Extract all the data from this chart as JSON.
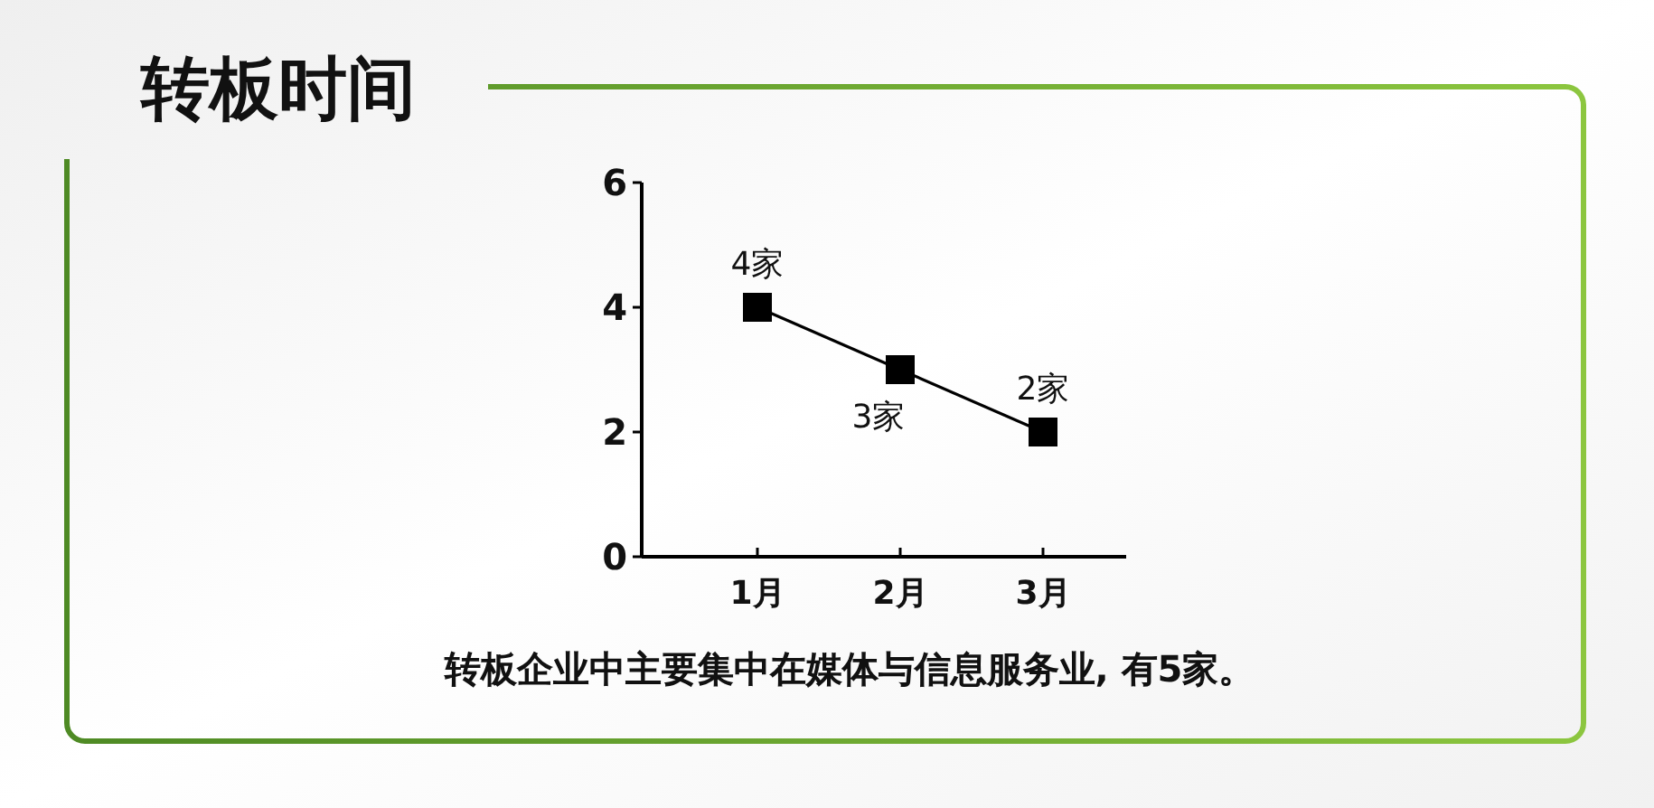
{
  "chart_data": {
    "type": "line",
    "title": "转板时间",
    "categories": [
      "1月",
      "2月",
      "3月"
    ],
    "series": [
      {
        "color": "#000000",
        "values": [
          4,
          3,
          2
        ],
        "value_labels": [
          "4家",
          "3家",
          "2家"
        ]
      }
    ],
    "ylim": [
      0,
      6
    ],
    "yticks": [
      0,
      2,
      4,
      6
    ],
    "marker": "square",
    "line_style": "solid",
    "annotations": [
      "转板企业中主要集中在媒体与信息服务业, 有5家。"
    ]
  }
}
